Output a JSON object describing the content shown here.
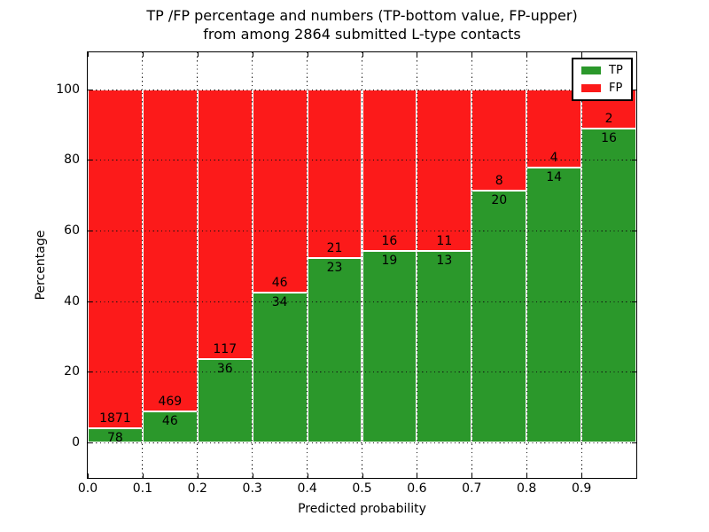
{
  "chart_data": {
    "type": "bar",
    "stacked": true,
    "normalized_each_bin_to_percent": true,
    "title_lines": [
      "TP /FP percentage and numbers (TP-bottom value, FP-upper)",
      "from among 2864 submitted L-type contacts"
    ],
    "xlabel": "Predicted probability",
    "ylabel": "Percentage",
    "total_contacts": 2864,
    "bin_edges": [
      0.0,
      0.1,
      0.2,
      0.3,
      0.4,
      0.5,
      0.6,
      0.7,
      0.8,
      0.9,
      1.0
    ],
    "series": [
      {
        "name": "TP",
        "color": "#2b982b",
        "values": [
          78,
          46,
          36,
          34,
          23,
          19,
          13,
          20,
          14,
          16
        ]
      },
      {
        "name": "FP",
        "color": "#fc1a1a",
        "values": [
          1871,
          469,
          117,
          46,
          21,
          16,
          11,
          8,
          4,
          2
        ]
      }
    ],
    "xticks": [
      "0.0",
      "0.1",
      "0.2",
      "0.3",
      "0.4",
      "0.5",
      "0.6",
      "0.7",
      "0.8",
      "0.9"
    ],
    "yticks": [
      0,
      20,
      40,
      60,
      80,
      100
    ],
    "xlim": [
      0.0,
      1.0
    ],
    "ylim": [
      -10,
      110.5
    ],
    "grid": true,
    "grid_style": "dotted",
    "bar_edge_color": "#ffffff",
    "legend_position": "upper right",
    "legend_entries": [
      "TP",
      "FP"
    ]
  }
}
